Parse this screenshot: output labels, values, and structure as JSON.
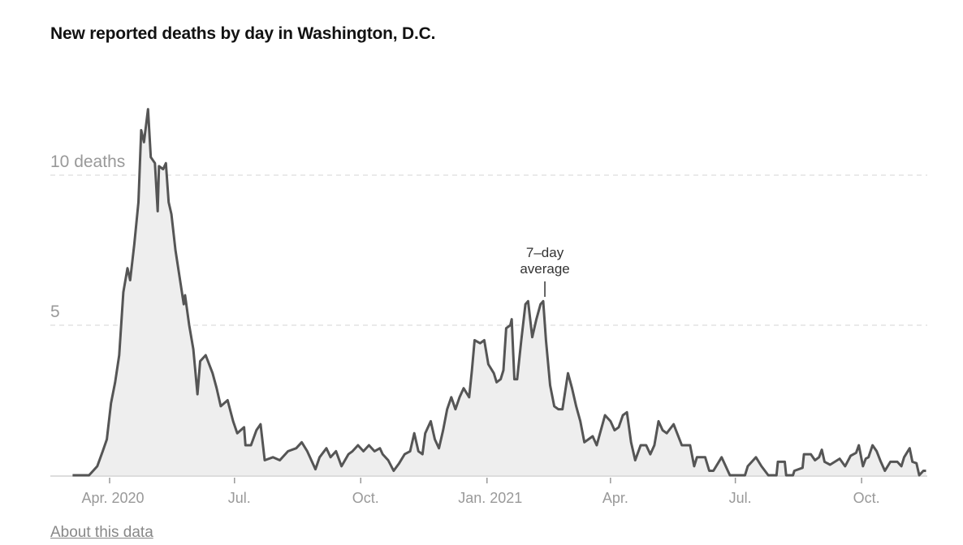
{
  "chart_data": {
    "type": "area",
    "title": "New reported deaths by day in Washington, D.C.",
    "xlabel": "",
    "ylabel": "",
    "x_unit": "days since Apr. 1, 2020",
    "xlim": [
      -27,
      595
    ],
    "ylim": [
      0,
      12.5
    ],
    "grid": true,
    "y_ticks": [
      {
        "value": 5,
        "label": "5"
      },
      {
        "value": 10,
        "label": "10 deaths"
      }
    ],
    "x_ticks": [
      {
        "value": 0,
        "label": "Apr. 2020"
      },
      {
        "value": 91,
        "label": "Jul."
      },
      {
        "value": 183,
        "label": "Oct."
      },
      {
        "value": 275,
        "label": "Jan. 2021"
      },
      {
        "value": 365,
        "label": "Apr."
      },
      {
        "value": 456,
        "label": "Jul."
      },
      {
        "value": 548,
        "label": "Oct."
      }
    ],
    "annotation": {
      "lines": [
        "7–day",
        "average"
      ],
      "x": 316,
      "y": 5.8
    },
    "series": [
      {
        "name": "7-day average",
        "x": [
          -27,
          -15,
          -9,
          -5,
          -2,
          1,
          4,
          7,
          10,
          13,
          15,
          18,
          21,
          23,
          25,
          28,
          30,
          33,
          35,
          36,
          39,
          41,
          43,
          45,
          48,
          50,
          54,
          55,
          58,
          61,
          64,
          66,
          70,
          75,
          78,
          81,
          86,
          90,
          93,
          98,
          99,
          103,
          107,
          110,
          113,
          119,
          124,
          130,
          136,
          140,
          144,
          150,
          153,
          158,
          161,
          165,
          169,
          174,
          177,
          181,
          185,
          189,
          193,
          197,
          199,
          203,
          207,
          211,
          215,
          219,
          222,
          225,
          228,
          230,
          234,
          237,
          240,
          243,
          246,
          249,
          252,
          255,
          258,
          262,
          264,
          266,
          270,
          273,
          276,
          280,
          282,
          285,
          287,
          289,
          292,
          293,
          295,
          297,
          300,
          303,
          305,
          308,
          311,
          314,
          316,
          318,
          321,
          324,
          327,
          330,
          334,
          337,
          340,
          343,
          346,
          349,
          352,
          355,
          358,
          361,
          365,
          368,
          371,
          374,
          377,
          380,
          383,
          387,
          391,
          394,
          397,
          400,
          403,
          406,
          411,
          417,
          423,
          426,
          428,
          434,
          437,
          440,
          446,
          452,
          463,
          465,
          471,
          475,
          480,
          486,
          487,
          492,
          493,
          498,
          499,
          505,
          506,
          511,
          514,
          517,
          519,
          521,
          525,
          532,
          536,
          540,
          544,
          546,
          549,
          551,
          553,
          556,
          559,
          562,
          565,
          569,
          574,
          577,
          579,
          583,
          585,
          588,
          590,
          593,
          595
        ],
        "values": [
          0,
          0,
          0.3,
          0.8,
          1.2,
          2.4,
          3.1,
          4.0,
          6.1,
          6.9,
          6.5,
          7.7,
          9.1,
          11.5,
          11.1,
          12.2,
          10.6,
          10.4,
          8.8,
          10.3,
          10.2,
          10.4,
          9.1,
          8.7,
          7.5,
          6.9,
          5.7,
          6.0,
          5.0,
          4.2,
          2.7,
          3.8,
          4.0,
          3.4,
          2.9,
          2.3,
          2.5,
          1.8,
          1.4,
          1.6,
          1.0,
          1.0,
          1.5,
          1.7,
          0.5,
          0.6,
          0.5,
          0.8,
          0.9,
          1.1,
          0.8,
          0.2,
          0.6,
          0.9,
          0.6,
          0.8,
          0.3,
          0.7,
          0.8,
          1.0,
          0.8,
          1.0,
          0.8,
          0.9,
          0.7,
          0.5,
          0.15,
          0.4,
          0.7,
          0.8,
          1.4,
          0.8,
          0.7,
          1.4,
          1.8,
          1.2,
          0.9,
          1.5,
          2.2,
          2.6,
          2.2,
          2.6,
          2.9,
          2.6,
          3.5,
          4.5,
          4.4,
          4.5,
          3.7,
          3.4,
          3.1,
          3.2,
          3.5,
          4.9,
          5.0,
          5.2,
          3.2,
          3.2,
          4.5,
          5.7,
          5.8,
          4.6,
          5.2,
          5.7,
          5.8,
          4.5,
          3.0,
          2.3,
          2.2,
          2.2,
          3.4,
          2.9,
          2.3,
          1.8,
          1.1,
          1.2,
          1.3,
          1.0,
          1.5,
          2.0,
          1.8,
          1.5,
          1.6,
          2.0,
          2.1,
          1.1,
          0.5,
          1.0,
          1.0,
          0.7,
          1.0,
          1.8,
          1.5,
          1.4,
          1.7,
          1.0,
          1.0,
          0.3,
          0.6,
          0.6,
          0.15,
          0.15,
          0.6,
          0,
          0,
          0.3,
          0.6,
          0.3,
          0,
          0,
          0.45,
          0.45,
          0,
          0,
          0.15,
          0.25,
          0.7,
          0.7,
          0.5,
          0.6,
          0.85,
          0.45,
          0.35,
          0.55,
          0.3,
          0.65,
          0.75,
          1.0,
          0.3,
          0.55,
          0.6,
          1.0,
          0.8,
          0.45,
          0.15,
          0.45,
          0.45,
          0.3,
          0.6,
          0.9,
          0.45,
          0.4,
          0,
          0.15,
          0.15
        ]
      }
    ]
  },
  "footer": {
    "about_link": "About this data"
  },
  "colors": {
    "line": "#555555",
    "fill": "#eeeeee",
    "grid": "#dddddd",
    "axis_text": "#999999"
  }
}
